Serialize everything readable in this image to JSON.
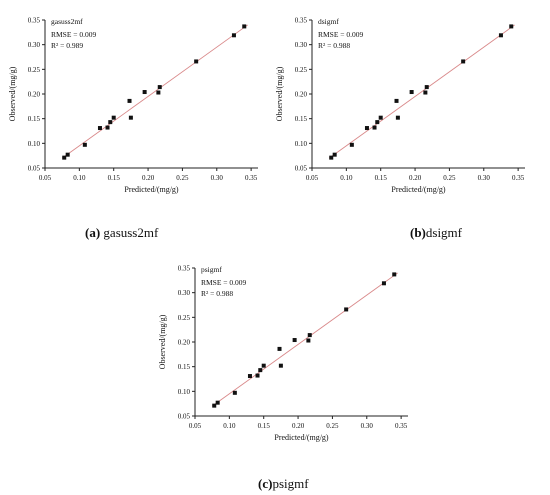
{
  "panels": [
    {
      "caption_letter": "(a)",
      "caption_label": " gasuss2mf"
    },
    {
      "caption_letter": "(b)",
      "caption_label": "dsigmf"
    },
    {
      "caption_letter": "(c)",
      "caption_label": "psigmf"
    }
  ],
  "chart_data": [
    {
      "type": "scatter",
      "name": "gasuss2mf",
      "stats": [
        "RMSE = 0.009",
        "R² = 0.989"
      ],
      "xlabel": "Predicted/(mg/g)",
      "ylabel": "Observed/(mg/g)",
      "xlim": [
        0.05,
        0.36
      ],
      "ylim": [
        0.05,
        0.35
      ],
      "xticks": [
        0.05,
        0.1,
        0.15,
        0.2,
        0.25,
        0.3,
        0.35
      ],
      "yticks": [
        0.05,
        0.1,
        0.15,
        0.2,
        0.25,
        0.3,
        0.35
      ],
      "fit_line": [
        [
          0.075,
          0.07
        ],
        [
          0.345,
          0.34
        ]
      ],
      "points": [
        [
          0.078,
          0.071
        ],
        [
          0.083,
          0.077
        ],
        [
          0.108,
          0.097
        ],
        [
          0.13,
          0.131
        ],
        [
          0.141,
          0.132
        ],
        [
          0.145,
          0.143
        ],
        [
          0.15,
          0.152
        ],
        [
          0.173,
          0.186
        ],
        [
          0.175,
          0.152
        ],
        [
          0.195,
          0.204
        ],
        [
          0.215,
          0.203
        ],
        [
          0.217,
          0.214
        ],
        [
          0.27,
          0.266
        ],
        [
          0.325,
          0.319
        ],
        [
          0.34,
          0.337
        ]
      ]
    },
    {
      "type": "scatter",
      "name": "dsigmf",
      "stats": [
        "RMSE = 0.009",
        "R² = 0.988"
      ],
      "xlabel": "Predicted/(mg/g)",
      "ylabel": "Observed/(mg/g)",
      "xlim": [
        0.05,
        0.36
      ],
      "ylim": [
        0.05,
        0.35
      ],
      "xticks": [
        0.05,
        0.1,
        0.15,
        0.2,
        0.25,
        0.3,
        0.35
      ],
      "yticks": [
        0.05,
        0.1,
        0.15,
        0.2,
        0.25,
        0.3,
        0.35
      ],
      "fit_line": [
        [
          0.075,
          0.07
        ],
        [
          0.345,
          0.34
        ]
      ],
      "points": [
        [
          0.078,
          0.071
        ],
        [
          0.083,
          0.077
        ],
        [
          0.108,
          0.097
        ],
        [
          0.13,
          0.131
        ],
        [
          0.141,
          0.132
        ],
        [
          0.145,
          0.143
        ],
        [
          0.15,
          0.152
        ],
        [
          0.173,
          0.186
        ],
        [
          0.175,
          0.152
        ],
        [
          0.195,
          0.204
        ],
        [
          0.215,
          0.203
        ],
        [
          0.217,
          0.214
        ],
        [
          0.27,
          0.266
        ],
        [
          0.325,
          0.319
        ],
        [
          0.34,
          0.337
        ]
      ]
    },
    {
      "type": "scatter",
      "name": "psigmf",
      "stats": [
        "RMSE = 0.009",
        "R² = 0.988"
      ],
      "xlabel": "Predicted/(mg/g)",
      "ylabel": "Observed/(mg/g)",
      "xlim": [
        0.05,
        0.36
      ],
      "ylim": [
        0.05,
        0.35
      ],
      "xticks": [
        0.05,
        0.1,
        0.15,
        0.2,
        0.25,
        0.3,
        0.35
      ],
      "yticks": [
        0.05,
        0.1,
        0.15,
        0.2,
        0.25,
        0.3,
        0.35
      ],
      "fit_line": [
        [
          0.075,
          0.07
        ],
        [
          0.345,
          0.34
        ]
      ],
      "points": [
        [
          0.078,
          0.071
        ],
        [
          0.083,
          0.077
        ],
        [
          0.108,
          0.097
        ],
        [
          0.13,
          0.131
        ],
        [
          0.141,
          0.132
        ],
        [
          0.145,
          0.143
        ],
        [
          0.15,
          0.152
        ],
        [
          0.173,
          0.186
        ],
        [
          0.175,
          0.152
        ],
        [
          0.195,
          0.204
        ],
        [
          0.215,
          0.203
        ],
        [
          0.217,
          0.214
        ],
        [
          0.27,
          0.266
        ],
        [
          0.325,
          0.319
        ],
        [
          0.34,
          0.337
        ]
      ]
    }
  ],
  "colors": {
    "axis": "#222222",
    "marker": "#111111",
    "fit_line": "#d9898a"
  }
}
